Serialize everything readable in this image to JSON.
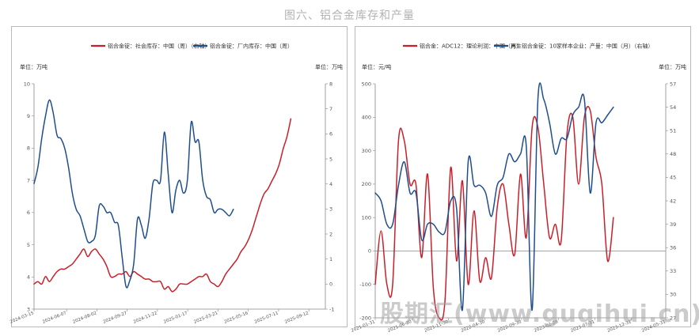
{
  "figure_title": "图六、铝合金库存和产量",
  "watermark": "股期汇(www.guqihui.cn)",
  "chart_data": [
    {
      "type": "line",
      "legend_position": "top",
      "grid": false,
      "unit_left": "单位：万吨",
      "unit_right": "单位：万吨",
      "ylim_left": [
        3,
        10
      ],
      "ylim_right": [
        -1,
        8
      ],
      "yticks_left": [
        3,
        4,
        5,
        6,
        7,
        8,
        9,
        10
      ],
      "yticks_right": [
        -1,
        0,
        1,
        2,
        3,
        4,
        5,
        6,
        7,
        8
      ],
      "xlim": [
        0,
        76
      ],
      "xticks": [
        {
          "pos": 0,
          "label": "2024-03-15"
        },
        {
          "pos": 8.5,
          "label": "2024-06-07"
        },
        {
          "pos": 16.4,
          "label": "2024-08-02"
        },
        {
          "pos": 24.3,
          "label": "2024-09-27"
        },
        {
          "pos": 32.2,
          "label": "2024-11-22"
        },
        {
          "pos": 40.1,
          "label": "2025-01-17"
        },
        {
          "pos": 48,
          "label": "2025-03-21"
        },
        {
          "pos": 55.9,
          "label": "2025-05-16"
        },
        {
          "pos": 63.8,
          "label": "2025-07-11"
        },
        {
          "pos": 71.7,
          "label": "2025-09-12"
        }
      ],
      "series": [
        {
          "name": "铝合金锭：社会库存：中国（周）（右轴）",
          "axis": "right",
          "color": "#c8202a",
          "points": [
            [
              0,
              0.0
            ],
            [
              1,
              0.1
            ],
            [
              2,
              0.0
            ],
            [
              3,
              0.3
            ],
            [
              4,
              0.1
            ],
            [
              5,
              0.3
            ],
            [
              6,
              0.5
            ],
            [
              7,
              0.6
            ],
            [
              8,
              0.6
            ],
            [
              9,
              0.7
            ],
            [
              10,
              0.8
            ],
            [
              11,
              1.0
            ],
            [
              12,
              1.2
            ],
            [
              13,
              1.4
            ],
            [
              14,
              1.1
            ],
            [
              15,
              1.3
            ],
            [
              16,
              1.4
            ],
            [
              17,
              1.2
            ],
            [
              18,
              1.0
            ],
            [
              19,
              0.7
            ],
            [
              20,
              0.3
            ],
            [
              21,
              0.3
            ],
            [
              22,
              0.4
            ],
            [
              23,
              0.4
            ],
            [
              24,
              0.5
            ],
            [
              25,
              0.3
            ],
            [
              26,
              0.5
            ],
            [
              27,
              0.4
            ],
            [
              28,
              0.3
            ],
            [
              29,
              0.2
            ],
            [
              30,
              0.2
            ],
            [
              31,
              0.1
            ],
            [
              32,
              0.1
            ],
            [
              33,
              0.1
            ],
            [
              34,
              -0.2
            ],
            [
              35,
              -0.1
            ],
            [
              36,
              -0.3
            ],
            [
              37,
              -0.2
            ],
            [
              38,
              0.0
            ],
            [
              39,
              0.0
            ],
            [
              40,
              0.0
            ],
            [
              41,
              0.1
            ],
            [
              42,
              0.2
            ],
            [
              43,
              0.3
            ],
            [
              44,
              0.3
            ],
            [
              45,
              0.4
            ],
            [
              46,
              0.1
            ],
            [
              47,
              0.0
            ],
            [
              48,
              -0.1
            ],
            [
              49,
              0.1
            ],
            [
              50,
              0.4
            ],
            [
              51,
              0.6
            ],
            [
              52,
              0.8
            ],
            [
              53,
              1.0
            ],
            [
              54,
              1.3
            ],
            [
              55,
              1.5
            ],
            [
              56,
              1.8
            ],
            [
              57,
              2.2
            ],
            [
              58,
              2.7
            ],
            [
              59,
              3.2
            ],
            [
              60,
              3.6
            ],
            [
              61,
              3.8
            ],
            [
              62,
              4.1
            ],
            [
              63,
              4.4
            ],
            [
              64,
              4.8
            ],
            [
              65,
              5.4
            ],
            [
              66,
              5.9
            ],
            [
              67,
              6.6
            ]
          ]
        },
        {
          "name": "铝合金锭：厂内库存：中国（周）",
          "axis": "left",
          "color": "#1f4e8c",
          "points": [
            [
              0,
              6.9
            ],
            [
              1,
              7.4
            ],
            [
              2,
              8.3
            ],
            [
              3,
              9.0
            ],
            [
              4,
              9.5
            ],
            [
              5,
              9.1
            ],
            [
              6,
              8.4
            ],
            [
              7,
              8.3
            ],
            [
              8,
              8.0
            ],
            [
              9,
              7.4
            ],
            [
              10,
              6.6
            ],
            [
              11,
              6.1
            ],
            [
              12,
              5.9
            ],
            [
              13,
              5.5
            ],
            [
              14,
              5.1
            ],
            [
              15,
              5.1
            ],
            [
              16,
              5.3
            ],
            [
              17,
              6.2
            ],
            [
              18,
              6.2
            ],
            [
              19,
              6.0
            ],
            [
              20,
              6.0
            ],
            [
              21,
              5.7
            ],
            [
              22,
              5.6
            ],
            [
              23,
              4.6
            ],
            [
              24,
              3.7
            ],
            [
              25,
              3.9
            ],
            [
              26,
              4.4
            ],
            [
              27,
              5.8
            ],
            [
              28,
              5.6
            ],
            [
              29,
              5.2
            ],
            [
              30,
              5.8
            ],
            [
              31,
              6.9
            ],
            [
              32,
              7.0
            ],
            [
              33,
              7.0
            ],
            [
              34,
              8.5
            ],
            [
              35,
              7.2
            ],
            [
              36,
              6.0
            ],
            [
              37,
              6.7
            ],
            [
              38,
              7.0
            ],
            [
              39,
              6.6
            ],
            [
              40,
              7.0
            ],
            [
              41,
              8.8
            ],
            [
              42,
              8.2
            ],
            [
              43,
              8.2
            ],
            [
              44,
              7.0
            ],
            [
              45,
              6.5
            ],
            [
              46,
              6.4
            ],
            [
              47,
              6.0
            ],
            [
              48,
              6.1
            ],
            [
              49,
              6.1
            ],
            [
              50,
              6.0
            ],
            [
              51,
              5.9
            ],
            [
              52,
              6.1
            ]
          ]
        }
      ]
    },
    {
      "type": "line",
      "legend_position": "top",
      "grid": false,
      "unit_left": "单位：元/吨",
      "unit_right": "单位：万吨",
      "ylim_left": [
        -200,
        500
      ],
      "ylim_right": [
        27,
        57
      ],
      "yticks_left": [
        -200,
        -100,
        0,
        100,
        200,
        300,
        400,
        500
      ],
      "yticks_right": [
        27,
        30,
        33,
        36,
        39,
        42,
        45,
        48,
        51,
        54,
        57
      ],
      "xlim": [
        0,
        50
      ],
      "xticks": [
        {
          "pos": 0,
          "label": "2021-01-31"
        },
        {
          "pos": 6.3,
          "label": "2021-06-30"
        },
        {
          "pos": 12.6,
          "label": "2021-11-30"
        },
        {
          "pos": 18.9,
          "label": "2022-04-30"
        },
        {
          "pos": 25.2,
          "label": "2022-09-30"
        },
        {
          "pos": 31.5,
          "label": "2023-02-28"
        },
        {
          "pos": 37.8,
          "label": "2023-07-31"
        },
        {
          "pos": 44.1,
          "label": "2023-12-31"
        },
        {
          "pos": 50,
          "label": "2024-05-31"
        }
      ],
      "series": [
        {
          "name": "铝合金：ADC12：理论利润：中国（月）",
          "axis": "left",
          "color": "#c8202a",
          "points": [
            [
              0,
              -100
            ],
            [
              1,
              60
            ],
            [
              2,
              -100
            ],
            [
              3,
              -100
            ],
            [
              4,
              330
            ],
            [
              5,
              330
            ],
            [
              6,
              200
            ],
            [
              7,
              200
            ],
            [
              8,
              -20
            ],
            [
              9,
              230
            ],
            [
              10,
              -110
            ],
            [
              11,
              -200
            ],
            [
              12,
              -150
            ],
            [
              13,
              250
            ],
            [
              14,
              -30
            ],
            [
              15,
              210
            ],
            [
              16,
              -100
            ],
            [
              17,
              120
            ],
            [
              18,
              -90
            ],
            [
              19,
              -20
            ],
            [
              20,
              -80
            ],
            [
              21,
              130
            ],
            [
              22,
              200
            ],
            [
              23,
              80
            ],
            [
              24,
              -10
            ],
            [
              25,
              230
            ],
            [
              26,
              40
            ],
            [
              27,
              370
            ],
            [
              28,
              370
            ],
            [
              29,
              200
            ],
            [
              30,
              40
            ],
            [
              31,
              80
            ],
            [
              32,
              30
            ],
            [
              33,
              350
            ],
            [
              34,
              400
            ],
            [
              35,
              200
            ],
            [
              36,
              400
            ],
            [
              37,
              420
            ],
            [
              38,
              280
            ],
            [
              39,
              200
            ],
            [
              40,
              -30
            ],
            [
              41,
              100
            ]
          ]
        },
        {
          "name": "再生铝合金锭：10家样本企业：产量：中国（月）（右轴）",
          "axis": "right",
          "color": "#1f4e8c",
          "points": [
            [
              0,
              43
            ],
            [
              1,
              42
            ],
            [
              2,
              39
            ],
            [
              3,
              39
            ],
            [
              4,
              44
            ],
            [
              5,
              47
            ],
            [
              6,
              43
            ],
            [
              7,
              43
            ],
            [
              8,
              37
            ],
            [
              9,
              39
            ],
            [
              10,
              39
            ],
            [
              11,
              38
            ],
            [
              12,
              38
            ],
            [
              13,
              42
            ],
            [
              14,
              41
            ],
            [
              15,
              28
            ],
            [
              16,
              47
            ],
            [
              17,
              44
            ],
            [
              18,
              44
            ],
            [
              19,
              43
            ],
            [
              20,
              40
            ],
            [
              21,
              44
            ],
            [
              22,
              45
            ],
            [
              23,
              48
            ],
            [
              24,
              47
            ],
            [
              25,
              48
            ],
            [
              26,
              49
            ],
            [
              27,
              28
            ],
            [
              28,
              55
            ],
            [
              29,
              55
            ],
            [
              30,
              52
            ],
            [
              31,
              48
            ],
            [
              32,
              50
            ],
            [
              33,
              50
            ],
            [
              34,
              53
            ],
            [
              35,
              54
            ],
            [
              36,
              55
            ],
            [
              37,
              43
            ],
            [
              38,
              52
            ],
            [
              39,
              52
            ],
            [
              40,
              53
            ],
            [
              41,
              54
            ]
          ]
        }
      ]
    }
  ]
}
